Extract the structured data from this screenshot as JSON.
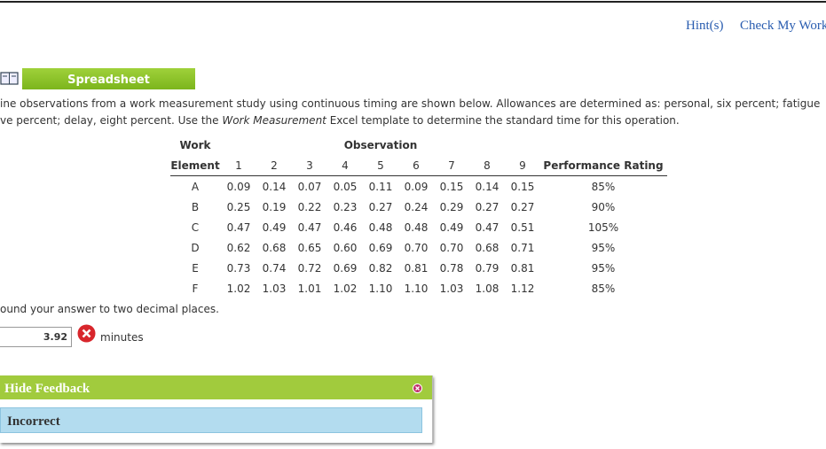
{
  "header": {
    "hints": "Hint(s)",
    "check": "Check My Work"
  },
  "spreadsheet": "Spreadsheet",
  "intro": {
    "line1": "ine observations from a work measurement study using continuous timing are shown below. Allowances are determined as: personal, six percent; fatigue",
    "line2_start": "ve percent; delay, eight percent. Use the ",
    "line2_em": "Work Measurement",
    "line2_end": " Excel template to determine the standard time for this operation."
  },
  "table": {
    "group_header": {
      "left": "Work",
      "middle": "Observation"
    },
    "columns": [
      "Element",
      "1",
      "2",
      "3",
      "4",
      "5",
      "6",
      "7",
      "8",
      "9",
      "Performance Rating"
    ],
    "rows": [
      [
        "A",
        "0.09",
        "0.14",
        "0.07",
        "0.05",
        "0.11",
        "0.09",
        "0.15",
        "0.14",
        "0.15",
        "85%"
      ],
      [
        "B",
        "0.25",
        "0.19",
        "0.22",
        "0.23",
        "0.27",
        "0.24",
        "0.29",
        "0.27",
        "0.27",
        "90%"
      ],
      [
        "C",
        "0.47",
        "0.49",
        "0.47",
        "0.46",
        "0.48",
        "0.48",
        "0.49",
        "0.47",
        "0.51",
        "105%"
      ],
      [
        "D",
        "0.62",
        "0.68",
        "0.65",
        "0.60",
        "0.69",
        "0.70",
        "0.70",
        "0.68",
        "0.71",
        "95%"
      ],
      [
        "E",
        "0.73",
        "0.74",
        "0.72",
        "0.69",
        "0.82",
        "0.81",
        "0.78",
        "0.79",
        "0.81",
        "95%"
      ],
      [
        "F",
        "1.02",
        "1.03",
        "1.01",
        "1.02",
        "1.10",
        "1.10",
        "1.03",
        "1.08",
        "1.12",
        "85%"
      ]
    ]
  },
  "instruction": "ound your answer to two decimal places.",
  "answer": {
    "value": "3.92",
    "unit": "minutes"
  },
  "feedback": {
    "toggle": "Hide Feedback",
    "result": "Incorrect"
  }
}
